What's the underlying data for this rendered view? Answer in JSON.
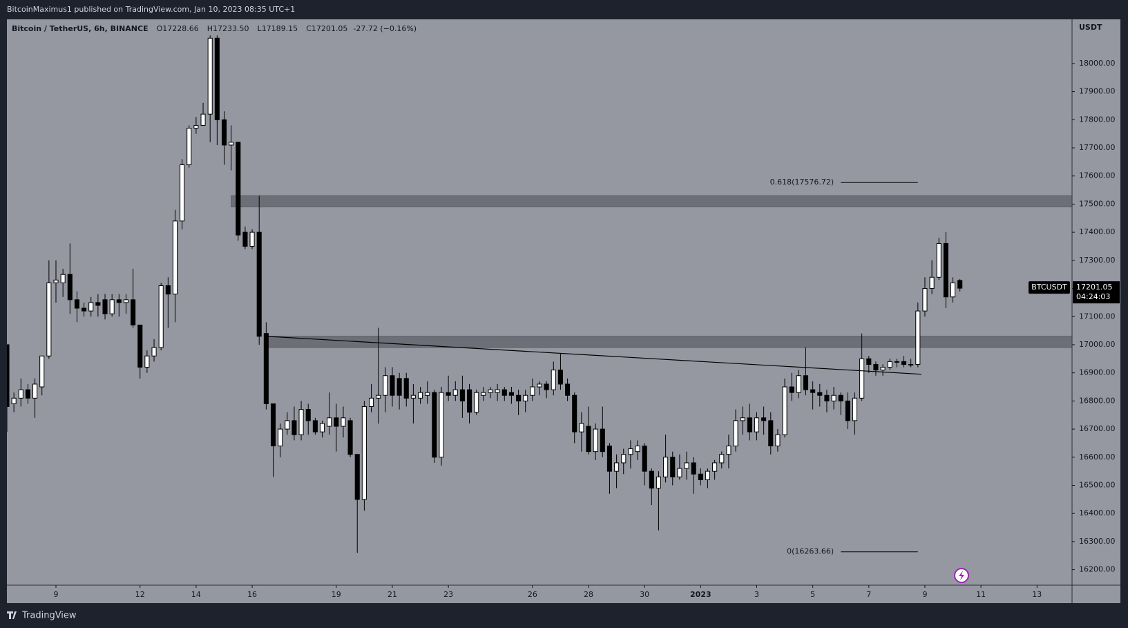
{
  "header": {
    "publisher": "BitcoinMaximus1 published on TradingView.com, Jan 10, 2023 08:35 UTC+1"
  },
  "footer": {
    "brand": "TradingView"
  },
  "legend": {
    "symbol": "Bitcoin / TetherUS, 6h, BINANCE",
    "fields": [
      {
        "label": "O",
        "value": "17228.66"
      },
      {
        "label": "H",
        "value": "17233.50"
      },
      {
        "label": "L",
        "value": "17189.15"
      },
      {
        "label": "C",
        "value": "17201.05"
      }
    ],
    "change": "-27.72 (−0.16%)"
  },
  "price_marker": {
    "ticker": "BTCUSDT",
    "price": "17201.05",
    "countdown": "04:24:03"
  },
  "chart_data": {
    "type": "candlestick",
    "y_axis_unit": "USDT",
    "up_color": "#ffffff",
    "down_color": "#000000",
    "background": "#9598a1",
    "xlim": [
      0,
      152
    ],
    "ylim": [
      16145,
      18157
    ],
    "xticks": [
      {
        "value": 7,
        "label": "9"
      },
      {
        "value": 19,
        "label": "12"
      },
      {
        "value": 27,
        "label": "14"
      },
      {
        "value": 35,
        "label": "16"
      },
      {
        "value": 47,
        "label": "19"
      },
      {
        "value": 55,
        "label": "21"
      },
      {
        "value": 63,
        "label": "23"
      },
      {
        "value": 75,
        "label": "26"
      },
      {
        "value": 83,
        "label": "28"
      },
      {
        "value": 91,
        "label": "30"
      },
      {
        "value": 99,
        "label": "2023"
      },
      {
        "value": 107,
        "label": "3"
      },
      {
        "value": 115,
        "label": "5"
      },
      {
        "value": 123,
        "label": "7"
      },
      {
        "value": 131,
        "label": "9"
      },
      {
        "value": 139,
        "label": "11"
      },
      {
        "value": 147,
        "label": "13"
      }
    ],
    "yticks": [
      {
        "value": 16200,
        "label": "16200.00"
      },
      {
        "value": 16300,
        "label": "16300.00"
      },
      {
        "value": 16400,
        "label": "16400.00"
      },
      {
        "value": 16500,
        "label": "16500.00"
      },
      {
        "value": 16600,
        "label": "16600.00"
      },
      {
        "value": 16700,
        "label": "16700.00"
      },
      {
        "value": 16800,
        "label": "16800.00"
      },
      {
        "value": 16900,
        "label": "16900.00"
      },
      {
        "value": 17000,
        "label": "17000.00"
      },
      {
        "value": 17100,
        "label": "17100.00"
      },
      {
        "value": 17200,
        "label": "17200.00"
      },
      {
        "value": 17300,
        "label": "17300.00"
      },
      {
        "value": 17400,
        "label": "17400.00"
      },
      {
        "value": 17500,
        "label": "17500.00"
      },
      {
        "value": 17600,
        "label": "17600.00"
      },
      {
        "value": 17700,
        "label": "17700.00"
      },
      {
        "value": 17800,
        "label": "17800.00"
      },
      {
        "value": 17900,
        "label": "17900.00"
      },
      {
        "value": 18000,
        "label": "18000.00"
      }
    ],
    "open": [
      17000,
      16790,
      16810,
      16840,
      16810,
      16850,
      16960,
      17220,
      17220,
      17250,
      17160,
      17130,
      17120,
      17150,
      17160,
      17110,
      17160,
      17150,
      17160,
      17070,
      16920,
      16960,
      16990,
      17210,
      17180,
      17440,
      17640,
      17770,
      17780,
      17820,
      18090,
      17800,
      17710,
      17720,
      17400,
      17350,
      17400,
      17040,
      16790,
      16640,
      16700,
      16730,
      16680,
      16770,
      16730,
      16690,
      16710,
      16740,
      16710,
      16730,
      16610,
      16450,
      16780,
      16810,
      16820,
      16890,
      16880,
      16880,
      16810,
      16810,
      16820,
      16830,
      16600,
      16830,
      16820,
      16840,
      16840,
      16760,
      16820,
      16830,
      16830,
      16840,
      16830,
      16820,
      16800,
      16820,
      16850,
      16860,
      16840,
      16910,
      16860,
      16820,
      16690,
      16710,
      16620,
      16700,
      16640,
      16550,
      16580,
      16610,
      16620,
      16640,
      16550,
      16490,
      16530,
      16600,
      16530,
      16560,
      16580,
      16540,
      16520,
      16550,
      16580,
      16610,
      16640,
      16730,
      16740,
      16690,
      16740,
      16730,
      16640,
      16680,
      16850,
      16830,
      16890,
      16840,
      16830,
      16820,
      16800,
      16820,
      16800,
      16730,
      16810,
      16950,
      16930,
      16910,
      16920,
      16940,
      16940,
      16930,
      16930,
      17120,
      17200,
      17240,
      17360,
      17170,
      17228.66
    ],
    "high": [
      17000,
      16830,
      16880,
      16860,
      16880,
      16960,
      17300,
      17300,
      17270,
      17360,
      17190,
      17150,
      17170,
      17180,
      17180,
      17180,
      17180,
      17180,
      17270,
      17070,
      16980,
      17020,
      17220,
      17240,
      17480,
      17660,
      17780,
      17810,
      17860,
      18100,
      18100,
      17830,
      17780,
      17720,
      17420,
      17410,
      17530,
      17080,
      16790,
      16720,
      16760,
      16780,
      16800,
      16790,
      16740,
      16730,
      16830,
      16790,
      16780,
      16740,
      16610,
      16800,
      16860,
      17060,
      16920,
      16920,
      16900,
      16900,
      16860,
      16850,
      16870,
      16840,
      16850,
      16890,
      16870,
      16890,
      16860,
      16840,
      16850,
      16850,
      16860,
      16850,
      16850,
      16840,
      16840,
      16880,
      16870,
      16870,
      16940,
      16970,
      16880,
      16830,
      16760,
      16780,
      16720,
      16780,
      16650,
      16610,
      16630,
      16660,
      16660,
      16650,
      16560,
      16550,
      16680,
      16620,
      16610,
      16620,
      16600,
      16560,
      16560,
      16590,
      16620,
      16680,
      16770,
      16780,
      16790,
      16760,
      16780,
      16760,
      16700,
      16880,
      16900,
      16910,
      16990,
      16870,
      16860,
      16840,
      16850,
      16830,
      16830,
      16830,
      17040,
      16960,
      16940,
      16930,
      16950,
      16950,
      16960,
      16950,
      17150,
      17240,
      17300,
      17380,
      17400,
      17240,
      17233.5
    ],
    "low": [
      16690,
      16760,
      16780,
      16790,
      16740,
      16820,
      16950,
      17150,
      17170,
      17110,
      17080,
      17100,
      17100,
      17100,
      17090,
      17100,
      17100,
      17110,
      17060,
      16880,
      16900,
      16940,
      16980,
      17060,
      17080,
      17410,
      17630,
      17750,
      17780,
      17720,
      17710,
      17640,
      17620,
      17370,
      17340,
      17340,
      17000,
      16770,
      16530,
      16600,
      16680,
      16660,
      16660,
      16680,
      16680,
      16670,
      16680,
      16620,
      16670,
      16600,
      16260,
      16410,
      16760,
      16720,
      16760,
      16780,
      16770,
      16780,
      16720,
      16790,
      16790,
      16580,
      16570,
      16800,
      16800,
      16740,
      16720,
      16750,
      16800,
      16810,
      16800,
      16800,
      16790,
      16750,
      16760,
      16800,
      16820,
      16810,
      16820,
      16840,
      16800,
      16650,
      16620,
      16610,
      16590,
      16600,
      16470,
      16490,
      16540,
      16560,
      16590,
      16500,
      16430,
      16340,
      16510,
      16500,
      16520,
      16520,
      16470,
      16500,
      16490,
      16520,
      16560,
      16560,
      16620,
      16680,
      16660,
      16660,
      16680,
      16610,
      16620,
      16670,
      16800,
      16810,
      16820,
      16770,
      16780,
      16760,
      16770,
      16750,
      16700,
      16680,
      16800,
      16900,
      16890,
      16890,
      16910,
      16920,
      16920,
      16920,
      16920,
      17100,
      17180,
      17230,
      17130,
      17150,
      17189.15
    ],
    "close": [
      16780,
      16810,
      16840,
      16810,
      16860,
      16960,
      17220,
      17230,
      17250,
      17160,
      17130,
      17120,
      17150,
      17140,
      17110,
      17160,
      17150,
      17160,
      17070,
      16920,
      16960,
      16990,
      17210,
      17180,
      17440,
      17640,
      17770,
      17780,
      17820,
      18090,
      17800,
      17710,
      17720,
      17390,
      17350,
      17400,
      17030,
      16790,
      16640,
      16700,
      16730,
      16680,
      16770,
      16730,
      16690,
      16720,
      16740,
      16710,
      16740,
      16610,
      16450,
      16780,
      16810,
      16820,
      16890,
      16820,
      16820,
      16810,
      16820,
      16830,
      16830,
      16600,
      16830,
      16820,
      16840,
      16800,
      16760,
      16830,
      16830,
      16840,
      16840,
      16820,
      16820,
      16800,
      16820,
      16850,
      16860,
      16840,
      16910,
      16860,
      16820,
      16690,
      16720,
      16620,
      16700,
      16620,
      16550,
      16580,
      16610,
      16630,
      16640,
      16550,
      16490,
      16530,
      16600,
      16530,
      16560,
      16580,
      16540,
      16520,
      16550,
      16580,
      16610,
      16640,
      16730,
      16740,
      16690,
      16740,
      16730,
      16640,
      16680,
      16850,
      16830,
      16890,
      16840,
      16830,
      16820,
      16800,
      16820,
      16800,
      16730,
      16810,
      16950,
      16930,
      16910,
      16920,
      16940,
      16940,
      16930,
      16930,
      17120,
      17200,
      17240,
      17360,
      17170,
      17220,
      17201.05
    ],
    "zones": [
      {
        "x": 32,
        "from": 17490,
        "to": 17530
      },
      {
        "x": 37,
        "from": 16990,
        "to": 17030
      }
    ],
    "trendline": {
      "x": [
        37,
        130.5
      ],
      "y": [
        17030,
        16895
      ]
    },
    "fib": {
      "x": [
        119,
        130
      ],
      "levels": [
        {
          "value": 17576.72,
          "label": "0.618(17576.72)"
        },
        {
          "value": 16263.66,
          "label": "0(16263.66)"
        }
      ]
    }
  }
}
